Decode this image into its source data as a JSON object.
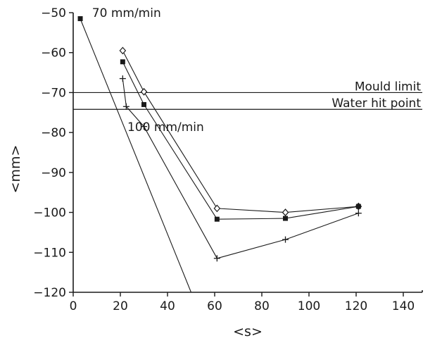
{
  "chart_data": {
    "type": "line",
    "title": "",
    "xlabel": "<s>",
    "ylabel": "<mm>",
    "xlim": [
      0,
      150
    ],
    "ylim": [
      -120,
      -50
    ],
    "xticks": [
      0,
      20,
      40,
      60,
      80,
      100,
      120,
      140
    ],
    "yticks": [
      -50,
      -60,
      -70,
      -80,
      -90,
      -100,
      -110,
      -120
    ],
    "grid": false,
    "series": [
      {
        "marker": "square",
        "x": [
          3,
          50
        ],
        "y": [
          -51.5,
          -120
        ]
      },
      {
        "marker": "diamond",
        "x": [
          21,
          30,
          61,
          90,
          121
        ],
        "y": [
          -59.5,
          -69.8,
          -99,
          -100,
          -98.5
        ]
      },
      {
        "marker": "square",
        "x": [
          21,
          30,
          61,
          90,
          121
        ],
        "y": [
          -62.3,
          -73,
          -101.7,
          -101.5,
          -98.5
        ]
      },
      {
        "marker": "plus",
        "x": [
          21,
          22.5,
          30,
          61,
          90,
          121
        ],
        "y": [
          -66.5,
          -73.5,
          -78.5,
          -111.5,
          -106.8,
          -100.2
        ]
      }
    ],
    "reference_lines": [
      {
        "label": "Mould limit",
        "y": -70
      },
      {
        "label": "Water hit point",
        "y": -74.2
      }
    ],
    "annotations": [
      {
        "text": "70 mm/min",
        "x": 8,
        "y": -50
      },
      {
        "text": "100 mm/min",
        "x": 23,
        "y": -78.6
      }
    ]
  }
}
